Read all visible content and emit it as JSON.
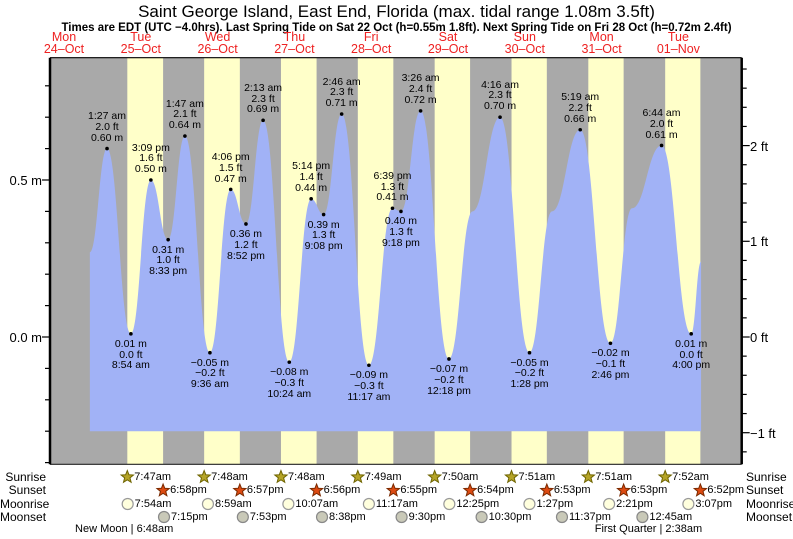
{
  "chart_data": {
    "type": "area",
    "title": "Saint George Island, East End, Florida (max. tidal range 1.08m 3.5ft)",
    "subtitle": "Times are EDT (UTC −4.0hrs). Last Spring Tide on Sat 22 Oct (h=0.55m 1.8ft). Next Spring Tide on Fri 28 Oct (h=0.72m 2.4ft)",
    "days": [
      {
        "dow": "Mon",
        "date": "24–Oct"
      },
      {
        "dow": "Tue",
        "date": "25–Oct"
      },
      {
        "dow": "Wed",
        "date": "26–Oct"
      },
      {
        "dow": "Thu",
        "date": "27–Oct"
      },
      {
        "dow": "Fri",
        "date": "28–Oct"
      },
      {
        "dow": "Sat",
        "date": "29–Oct"
      },
      {
        "dow": "Sun",
        "date": "30–Oct"
      },
      {
        "dow": "Mon",
        "date": "31–Oct"
      },
      {
        "dow": "Tue",
        "date": "01–Nov"
      }
    ],
    "y_axis_left": {
      "major_ticks": [
        {
          "value": 0.5,
          "label": "0.5 m"
        },
        {
          "value": 0.0,
          "label": "0.0 m"
        }
      ]
    },
    "y_axis_right": {
      "major_ticks": [
        {
          "value": 2,
          "label": "2 ft"
        },
        {
          "value": 1,
          "label": "1 ft"
        },
        {
          "value": 0,
          "label": "0 ft"
        },
        {
          "value": -1,
          "label": "−1 ft"
        }
      ]
    },
    "tide_events": [
      {
        "day": 1,
        "type": "high",
        "time": "1:27 am",
        "height_m": 0.6,
        "m_label": "0.60 m",
        "ft_label": "2.0 ft"
      },
      {
        "day": 1,
        "type": "low",
        "time": "8:54 am",
        "height_m": 0.01,
        "m_label": "0.01 m",
        "ft_label": "0.0 ft"
      },
      {
        "day": 1,
        "type": "high",
        "time": "3:09 pm",
        "height_m": 0.5,
        "m_label": "0.50 m",
        "ft_label": "1.6 ft"
      },
      {
        "day": 1,
        "type": "low",
        "time": "8:33 pm",
        "height_m": 0.31,
        "m_label": "0.31 m",
        "ft_label": "1.0 ft"
      },
      {
        "day": 2,
        "type": "high",
        "time": "1:47 am",
        "height_m": 0.64,
        "m_label": "0.64 m",
        "ft_label": "2.1 ft"
      },
      {
        "day": 2,
        "type": "low",
        "time": "9:36 am",
        "height_m": -0.05,
        "m_label": "−0.05 m",
        "ft_label": "−0.2 ft"
      },
      {
        "day": 2,
        "type": "high",
        "time": "4:06 pm",
        "height_m": 0.47,
        "m_label": "0.47 m",
        "ft_label": "1.5 ft"
      },
      {
        "day": 2,
        "type": "low",
        "time": "8:52 pm",
        "height_m": 0.36,
        "m_label": "0.36 m",
        "ft_label": "1.2 ft"
      },
      {
        "day": 3,
        "type": "high",
        "time": "2:13 am",
        "height_m": 0.69,
        "m_label": "0.69 m",
        "ft_label": "2.3 ft"
      },
      {
        "day": 3,
        "type": "low",
        "time": "10:24 am",
        "height_m": -0.08,
        "m_label": "−0.08 m",
        "ft_label": "−0.3 ft"
      },
      {
        "day": 3,
        "type": "high",
        "time": "5:14 pm",
        "height_m": 0.44,
        "m_label": "0.44 m",
        "ft_label": "1.4 ft"
      },
      {
        "day": 3,
        "type": "low",
        "time": "9:08 pm",
        "height_m": 0.39,
        "m_label": "0.39 m",
        "ft_label": "1.3 ft"
      },
      {
        "day": 4,
        "type": "high",
        "time": "2:46 am",
        "height_m": 0.71,
        "m_label": "0.71 m",
        "ft_label": "2.3 ft"
      },
      {
        "day": 4,
        "type": "low",
        "time": "11:17 am",
        "height_m": -0.09,
        "m_label": "−0.09 m",
        "ft_label": "−0.3 ft"
      },
      {
        "day": 4,
        "type": "high",
        "time": "6:39 pm",
        "height_m": 0.41,
        "m_label": "0.41 m",
        "ft_label": "1.3 ft"
      },
      {
        "day": 4,
        "type": "low",
        "time": "9:18 pm",
        "height_m": 0.4,
        "m_label": "0.40 m",
        "ft_label": "1.3 ft"
      },
      {
        "day": 5,
        "type": "high",
        "time": "3:26 am",
        "height_m": 0.72,
        "m_label": "0.72 m",
        "ft_label": "2.4 ft"
      },
      {
        "day": 5,
        "type": "low",
        "time": "12:18 pm",
        "height_m": -0.07,
        "m_label": "−0.07 m",
        "ft_label": "−0.2 ft"
      },
      {
        "day": 6,
        "type": "high",
        "time": "4:16 am",
        "height_m": 0.7,
        "m_label": "0.70 m",
        "ft_label": "2.3 ft"
      },
      {
        "day": 6,
        "type": "low",
        "time": "1:28 pm",
        "height_m": -0.05,
        "m_label": "−0.05 m",
        "ft_label": "−0.2 ft"
      },
      {
        "day": 7,
        "type": "high",
        "time": "5:19 am",
        "height_m": 0.66,
        "m_label": "0.66 m",
        "ft_label": "2.2 ft"
      },
      {
        "day": 7,
        "type": "low",
        "time": "2:46 pm",
        "height_m": -0.02,
        "m_label": "−0.02 m",
        "ft_label": "−0.1 ft"
      },
      {
        "day": 8,
        "type": "high",
        "time": "6:44 am",
        "height_m": 0.61,
        "m_label": "0.61 m",
        "ft_label": "2.0 ft"
      },
      {
        "day": 8,
        "type": "low",
        "time": "4:00 pm",
        "height_m": 0.01,
        "m_label": "0.01 m",
        "ft_label": "0.0 ft"
      }
    ],
    "curve_edges": {
      "start": {
        "day": 0,
        "time": "8:05 pm",
        "height_m": 0.27
      },
      "end": {
        "day": 8,
        "time": "7:05 pm",
        "height_m": 0.24
      }
    },
    "curve_inflections": [
      {
        "day": 5,
        "time": "7:40 pm",
        "height_m": 0.4
      },
      {
        "day": 6,
        "time": "8:30 pm",
        "height_m": 0.4
      },
      {
        "day": 7,
        "time": "9:30 pm",
        "height_m": 0.41
      }
    ],
    "astro": {
      "row_labels": [
        "Sunrise",
        "Sunset",
        "Moonrise",
        "Moonset"
      ],
      "sunrise": [
        {
          "day": 1,
          "time": "7:47am"
        },
        {
          "day": 2,
          "time": "7:48am"
        },
        {
          "day": 3,
          "time": "7:48am"
        },
        {
          "day": 4,
          "time": "7:49am"
        },
        {
          "day": 5,
          "time": "7:50am"
        },
        {
          "day": 6,
          "time": "7:51am"
        },
        {
          "day": 7,
          "time": "7:51am"
        },
        {
          "day": 8,
          "time": "7:52am"
        }
      ],
      "sunset": [
        {
          "day": 1,
          "time": "6:58pm"
        },
        {
          "day": 2,
          "time": "6:57pm"
        },
        {
          "day": 3,
          "time": "6:56pm"
        },
        {
          "day": 4,
          "time": "6:55pm"
        },
        {
          "day": 5,
          "time": "6:54pm"
        },
        {
          "day": 6,
          "time": "6:53pm"
        },
        {
          "day": 7,
          "time": "6:53pm"
        },
        {
          "day": 8,
          "time": "6:52pm"
        }
      ],
      "moonrise": [
        {
          "day": 1,
          "time": "7:54am"
        },
        {
          "day": 2,
          "time": "8:59am"
        },
        {
          "day": 3,
          "time": "10:07am"
        },
        {
          "day": 4,
          "time": "11:17am"
        },
        {
          "day": 5,
          "time": "12:25pm"
        },
        {
          "day": 6,
          "time": "1:27pm"
        },
        {
          "day": 7,
          "time": "2:21pm"
        },
        {
          "day": 8,
          "time": "3:07pm"
        }
      ],
      "moonset": [
        {
          "day": 1,
          "time": "7:15pm"
        },
        {
          "day": 2,
          "time": "7:53pm"
        },
        {
          "day": 3,
          "time": "8:38pm"
        },
        {
          "day": 4,
          "time": "9:30pm"
        },
        {
          "day": 5,
          "time": "10:30pm"
        },
        {
          "day": 6,
          "time": "11:37pm"
        },
        {
          "day": 8,
          "time": "12:45am"
        }
      ]
    },
    "moon_phases": [
      {
        "label": "New Moon | 6:48am",
        "day": 1,
        "time": "6:48am"
      },
      {
        "label": "First Quarter | 2:38am",
        "day": 8,
        "time": "2:38am"
      }
    ],
    "colors": {
      "day_band": "#ffffc9",
      "night_band": "#a9a9a9",
      "tide_fill": "#a1b2f6",
      "date_text": "#ee2222",
      "sunrise_star": "#b5a427",
      "sunset_star": "#dd4a11",
      "moonrise_fill": "#ffffdd",
      "moonset_fill": "#c9c9b8"
    }
  }
}
